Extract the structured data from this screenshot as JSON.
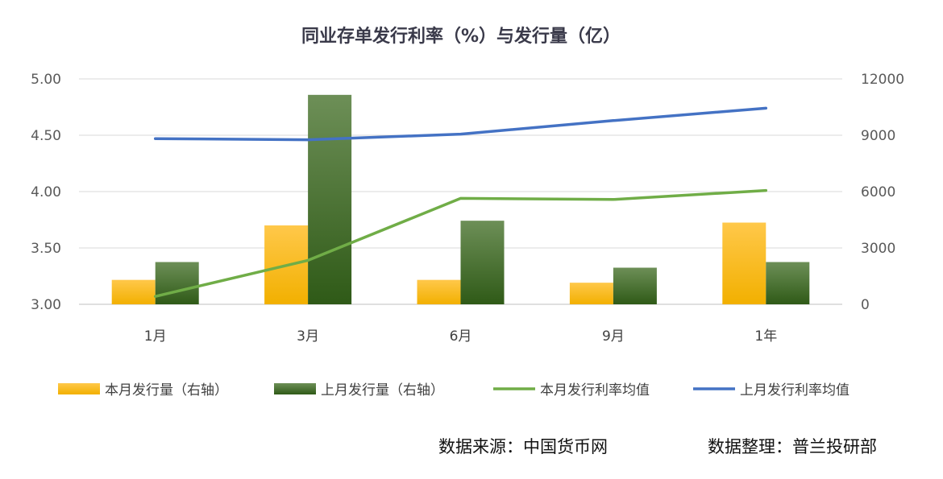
{
  "chart_data": {
    "type": "bar",
    "title": "同业存单发行利率（%）与发行量（亿）",
    "categories": [
      "1月",
      "3月",
      "6月",
      "9月",
      "1年"
    ],
    "y_left": {
      "ylim": [
        3.0,
        5.0
      ],
      "ticks": [
        "3.00",
        "3.50",
        "4.00",
        "4.50",
        "5.00"
      ]
    },
    "y_right": {
      "ylim": [
        0,
        12000
      ],
      "ticks": [
        "0",
        "3000",
        "6000",
        "9000",
        "12000"
      ]
    },
    "series": [
      {
        "name": "本月发行量（右轴）",
        "type": "bar",
        "axis": "right",
        "color": "#ffc000",
        "values": [
          1300,
          4200,
          1300,
          1150,
          4350
        ]
      },
      {
        "name": "上月发行量（右轴）",
        "type": "bar",
        "axis": "right",
        "color": "#3e6b24",
        "values": [
          2250,
          11150,
          4450,
          1950,
          2250
        ]
      },
      {
        "name": "本月发行利率均值",
        "type": "line",
        "axis": "left",
        "color": "#70ad47",
        "values": [
          3.07,
          3.39,
          3.94,
          3.93,
          4.01
        ]
      },
      {
        "name": "上月发行利率均值",
        "type": "line",
        "axis": "left",
        "color": "#4472c4",
        "values": [
          4.47,
          4.46,
          4.51,
          4.63,
          4.74
        ]
      }
    ],
    "grid": true,
    "legend": "bottom"
  },
  "footer": {
    "source": "数据来源：中国货币网",
    "compiled": "数据整理：普兰投研部"
  }
}
